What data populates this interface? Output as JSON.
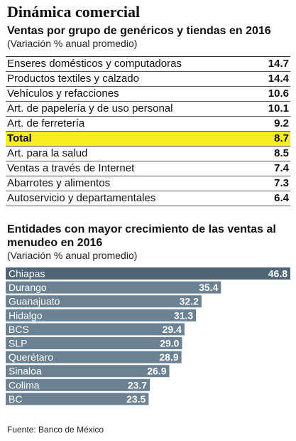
{
  "title": "Dinámica comercial",
  "section1": {
    "title": "Ventas por grupo de genéricos y tiendas en 2016",
    "note": "(Variación % anual promedio)",
    "rows": [
      {
        "label": "Enseres domésticos y computadoras",
        "value": "14.7"
      },
      {
        "label": "Productos textiles y calzado",
        "value": "14.4"
      },
      {
        "label": "Vehículos y refacciones",
        "value": "10.6"
      },
      {
        "label": "Art. de papelería y de uso personal",
        "value": "10.1"
      },
      {
        "label": "Art. de ferretería",
        "value": "9.2"
      },
      {
        "label": "Total",
        "value": "8.7",
        "highlight": true
      },
      {
        "label": "Art. para la salud",
        "value": "8.5"
      },
      {
        "label": "Ventas a través de Internet",
        "value": "7.4"
      },
      {
        "label": "Abarrotes y alimentos",
        "value": "7.3"
      },
      {
        "label": "Autoservicio y departamentales",
        "value": "6.4"
      }
    ],
    "highlight_color": "#f7ef22"
  },
  "section2": {
    "title": "Entidades con mayor crecimiento de las ventas al menudeo en 2016",
    "note": "(Variación % anual promedio)"
  },
  "chart_data": {
    "type": "bar",
    "orientation": "horizontal",
    "categories": [
      "Chiapas",
      "Durango",
      "Guanajuato",
      "Hidalgo",
      "BCS",
      "SLP",
      "Querétaro",
      "Sinaloa",
      "Colima",
      "BC"
    ],
    "values": [
      46.8,
      35.4,
      32.2,
      31.3,
      29.4,
      29.0,
      28.9,
      26.9,
      23.7,
      23.5
    ],
    "value_labels": [
      "46.8",
      "35.4",
      "32.2",
      "31.3",
      "29.4",
      "29.0",
      "28.9",
      "26.9",
      "23.7",
      "23.5"
    ],
    "title": "Entidades con mayor crecimiento de las ventas al menudeo en 2016",
    "xlabel": "",
    "ylabel": "",
    "bar_color": "#6b8194",
    "highlight_color": "#4f6577",
    "label_color": "#ffffff"
  },
  "source": "Fuente: Banco de México"
}
